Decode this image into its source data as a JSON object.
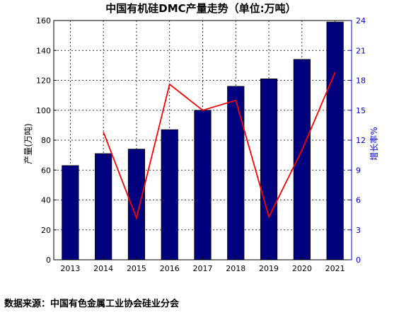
{
  "chart_data": {
    "type": "bar",
    "title": "中国有机硅DMC产量走势（单位:万吨）",
    "categories": [
      "2013",
      "2014",
      "2015",
      "2016",
      "2017",
      "2018",
      "2019",
      "2020",
      "2021"
    ],
    "series": [
      {
        "axis": "left",
        "chart_type": "bar",
        "color": "#00007f",
        "values": [
          63,
          71,
          74,
          87,
          100,
          116,
          121,
          134,
          159
        ]
      },
      {
        "axis": "right",
        "chart_type": "line",
        "color": "#ff0000",
        "values": [
          null,
          12.8,
          4.2,
          17.6,
          15.0,
          16.0,
          4.3,
          11.0,
          18.8
        ]
      }
    ],
    "ylabel": "产量(万吨)",
    "ylim": [
      0,
      160
    ],
    "yticks": [
      "0",
      "20",
      "40",
      "60",
      "80",
      "100",
      "120",
      "140",
      "160"
    ],
    "y2label": "增长率%",
    "y2lim": [
      0,
      24
    ],
    "y2ticks": [
      "0",
      "3",
      "6",
      "9",
      "12",
      "15",
      "18",
      "21",
      "24"
    ],
    "grid": true,
    "left_axis_color": "#000000",
    "right_axis_color": "#0000cc"
  },
  "source": "数据来源：中国有色金属工业协会硅业分会"
}
